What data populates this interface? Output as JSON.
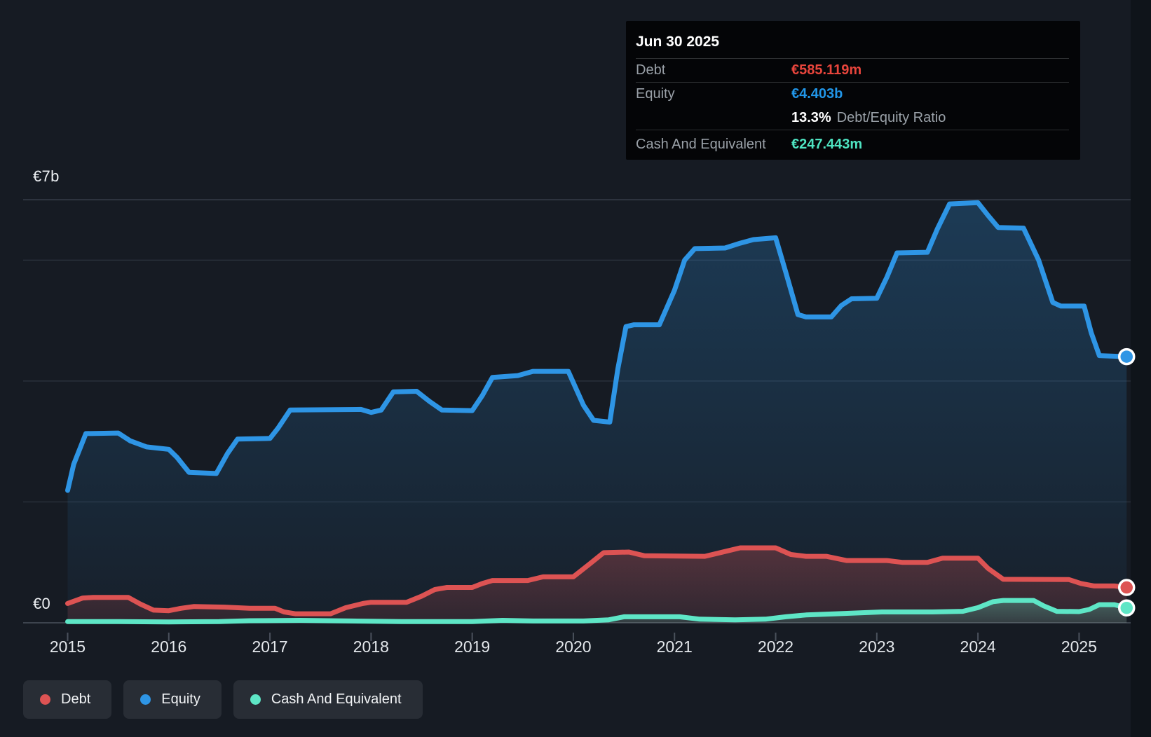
{
  "tooltip": {
    "date": "Jun 30 2025",
    "debt_label": "Debt",
    "debt_value": "€585.119m",
    "equity_label": "Equity",
    "equity_value": "€4.403b",
    "ratio_value": "13.3%",
    "ratio_label": "Debt/Equity Ratio",
    "cash_label": "Cash And Equivalent",
    "cash_value": "€247.443m"
  },
  "axis": {
    "y_top_label": "€7b",
    "y_zero_label": "€0"
  },
  "legend": {
    "items": [
      {
        "label": "Debt"
      },
      {
        "label": "Equity"
      },
      {
        "label": "Cash And Equivalent"
      }
    ]
  },
  "colors": {
    "background": "#161b23",
    "right_band": "#0f141a",
    "grid_major": "#3d444e",
    "grid_top": "#39414c",
    "grid_minor": "#2a313b",
    "tick": "#4a515c",
    "year_label": "#e4e8ec",
    "debt_value_text": "#e8453c",
    "equity_value_text": "#2196e8",
    "cash_value_text": "#4ee3c1"
  },
  "chart_data": {
    "type": "area",
    "title": "Debt to Equity history",
    "xlabel": "",
    "ylabel": "",
    "x_range": [
      2014.56,
      2025.51
    ],
    "ylim": [
      0,
      7.29
    ],
    "y_gridlines": [
      0,
      2,
      4,
      6,
      7
    ],
    "x_ticks": [
      2015,
      2016,
      2017,
      2018,
      2019,
      2020,
      2021,
      2022,
      2023,
      2024,
      2025
    ],
    "x_tick_labels": [
      "2015",
      "2016",
      "2017",
      "2018",
      "2019",
      "2020",
      "2021",
      "2022",
      "2023",
      "2024",
      "2025"
    ],
    "legend_position": "bottom-left",
    "grid": true,
    "unit": "billions EUR",
    "series": [
      {
        "name": "Equity",
        "color": "#2e95e5",
        "final_label": "€4.403b",
        "points": [
          [
            2015.0,
            2.19
          ],
          [
            2015.06,
            2.62
          ],
          [
            2015.18,
            3.13
          ],
          [
            2015.5,
            3.14
          ],
          [
            2015.62,
            3.01
          ],
          [
            2015.78,
            2.91
          ],
          [
            2016.0,
            2.87
          ],
          [
            2016.08,
            2.74
          ],
          [
            2016.2,
            2.49
          ],
          [
            2016.47,
            2.47
          ],
          [
            2016.58,
            2.8
          ],
          [
            2016.68,
            3.04
          ],
          [
            2017.0,
            3.05
          ],
          [
            2017.08,
            3.22
          ],
          [
            2017.2,
            3.52
          ],
          [
            2017.9,
            3.53
          ],
          [
            2018.0,
            3.48
          ],
          [
            2018.1,
            3.52
          ],
          [
            2018.22,
            3.82
          ],
          [
            2018.45,
            3.83
          ],
          [
            2018.58,
            3.66
          ],
          [
            2018.7,
            3.52
          ],
          [
            2019.0,
            3.51
          ],
          [
            2019.1,
            3.76
          ],
          [
            2019.2,
            4.06
          ],
          [
            2019.45,
            4.09
          ],
          [
            2019.6,
            4.16
          ],
          [
            2019.95,
            4.16
          ],
          [
            2020.1,
            3.6
          ],
          [
            2020.2,
            3.35
          ],
          [
            2020.36,
            3.32
          ],
          [
            2020.44,
            4.2
          ],
          [
            2020.52,
            4.9
          ],
          [
            2020.6,
            4.93
          ],
          [
            2020.85,
            4.93
          ],
          [
            2021.0,
            5.5
          ],
          [
            2021.1,
            6.0
          ],
          [
            2021.2,
            6.19
          ],
          [
            2021.5,
            6.2
          ],
          [
            2021.65,
            6.28
          ],
          [
            2021.78,
            6.34
          ],
          [
            2022.0,
            6.37
          ],
          [
            2022.1,
            5.8
          ],
          [
            2022.22,
            5.1
          ],
          [
            2022.3,
            5.06
          ],
          [
            2022.55,
            5.06
          ],
          [
            2022.65,
            5.25
          ],
          [
            2022.75,
            5.36
          ],
          [
            2023.0,
            5.37
          ],
          [
            2023.1,
            5.72
          ],
          [
            2023.2,
            6.12
          ],
          [
            2023.5,
            6.13
          ],
          [
            2023.6,
            6.52
          ],
          [
            2023.72,
            6.93
          ],
          [
            2024.0,
            6.95
          ],
          [
            2024.1,
            6.74
          ],
          [
            2024.2,
            6.54
          ],
          [
            2024.45,
            6.53
          ],
          [
            2024.6,
            6.0
          ],
          [
            2024.74,
            5.3
          ],
          [
            2024.82,
            5.24
          ],
          [
            2025.05,
            5.24
          ],
          [
            2025.12,
            4.8
          ],
          [
            2025.2,
            4.42
          ],
          [
            2025.47,
            4.403
          ]
        ]
      },
      {
        "name": "Debt",
        "color": "#dd5353",
        "final_label": "€585.119m",
        "points": [
          [
            2015.0,
            0.32
          ],
          [
            2015.15,
            0.41
          ],
          [
            2015.25,
            0.42
          ],
          [
            2015.6,
            0.42
          ],
          [
            2015.72,
            0.31
          ],
          [
            2015.85,
            0.21
          ],
          [
            2016.0,
            0.2
          ],
          [
            2016.12,
            0.24
          ],
          [
            2016.25,
            0.27
          ],
          [
            2016.55,
            0.26
          ],
          [
            2016.8,
            0.24
          ],
          [
            2017.05,
            0.24
          ],
          [
            2017.14,
            0.18
          ],
          [
            2017.25,
            0.15
          ],
          [
            2017.6,
            0.15
          ],
          [
            2017.75,
            0.25
          ],
          [
            2017.92,
            0.32
          ],
          [
            2018.0,
            0.34
          ],
          [
            2018.35,
            0.34
          ],
          [
            2018.5,
            0.44
          ],
          [
            2018.63,
            0.55
          ],
          [
            2018.75,
            0.585
          ],
          [
            2019.0,
            0.585
          ],
          [
            2019.1,
            0.65
          ],
          [
            2019.2,
            0.7
          ],
          [
            2019.55,
            0.7
          ],
          [
            2019.7,
            0.76
          ],
          [
            2020.0,
            0.76
          ],
          [
            2020.15,
            0.96
          ],
          [
            2020.3,
            1.16
          ],
          [
            2020.55,
            1.17
          ],
          [
            2020.7,
            1.11
          ],
          [
            2021.3,
            1.1
          ],
          [
            2021.5,
            1.18
          ],
          [
            2021.65,
            1.24
          ],
          [
            2022.0,
            1.24
          ],
          [
            2022.15,
            1.13
          ],
          [
            2022.3,
            1.1
          ],
          [
            2022.5,
            1.1
          ],
          [
            2022.7,
            1.03
          ],
          [
            2023.1,
            1.03
          ],
          [
            2023.25,
            1.0
          ],
          [
            2023.5,
            1.0
          ],
          [
            2023.65,
            1.07
          ],
          [
            2024.0,
            1.07
          ],
          [
            2024.1,
            0.9
          ],
          [
            2024.25,
            0.72
          ],
          [
            2024.9,
            0.715
          ],
          [
            2025.02,
            0.65
          ],
          [
            2025.15,
            0.61
          ],
          [
            2025.35,
            0.61
          ],
          [
            2025.47,
            0.585
          ]
        ]
      },
      {
        "name": "Cash And Equivalent",
        "color": "#5ee6c6",
        "final_label": "€247.443m",
        "points": [
          [
            2015.0,
            0.02
          ],
          [
            2015.5,
            0.02
          ],
          [
            2016.0,
            0.015
          ],
          [
            2016.5,
            0.02
          ],
          [
            2016.8,
            0.035
          ],
          [
            2017.3,
            0.04
          ],
          [
            2017.8,
            0.03
          ],
          [
            2018.3,
            0.02
          ],
          [
            2019.0,
            0.02
          ],
          [
            2019.3,
            0.04
          ],
          [
            2019.6,
            0.03
          ],
          [
            2020.1,
            0.03
          ],
          [
            2020.35,
            0.05
          ],
          [
            2020.5,
            0.1
          ],
          [
            2021.05,
            0.1
          ],
          [
            2021.25,
            0.06
          ],
          [
            2021.6,
            0.05
          ],
          [
            2021.9,
            0.06
          ],
          [
            2022.1,
            0.1
          ],
          [
            2022.3,
            0.13
          ],
          [
            2022.6,
            0.15
          ],
          [
            2023.05,
            0.18
          ],
          [
            2023.55,
            0.18
          ],
          [
            2023.85,
            0.19
          ],
          [
            2024.0,
            0.25
          ],
          [
            2024.15,
            0.35
          ],
          [
            2024.25,
            0.37
          ],
          [
            2024.55,
            0.37
          ],
          [
            2024.65,
            0.28
          ],
          [
            2024.78,
            0.19
          ],
          [
            2025.0,
            0.185
          ],
          [
            2025.1,
            0.22
          ],
          [
            2025.2,
            0.3
          ],
          [
            2025.35,
            0.3
          ],
          [
            2025.47,
            0.247
          ]
        ]
      }
    ]
  }
}
